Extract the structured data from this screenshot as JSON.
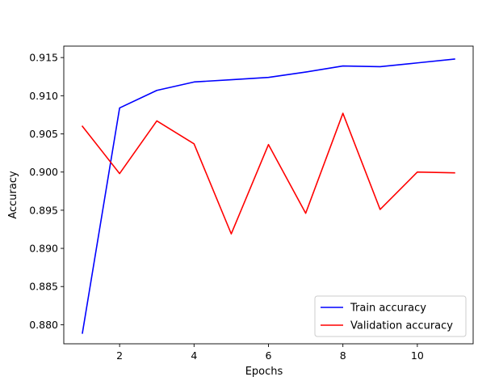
{
  "chart_data": {
    "type": "line",
    "title": "",
    "xlabel": "Epochs",
    "ylabel": "Accuracy",
    "xlim": [
      0.5,
      11.5
    ],
    "ylim": [
      0.8775,
      0.9165
    ],
    "x_ticks": [
      2,
      4,
      6,
      8,
      10
    ],
    "y_ticks": [
      0.88,
      0.885,
      0.89,
      0.895,
      0.9,
      0.905,
      0.91,
      0.915
    ],
    "y_tick_labels": [
      "0.880",
      "0.885",
      "0.890",
      "0.895",
      "0.900",
      "0.905",
      "0.910",
      "0.915"
    ],
    "grid": false,
    "legend_position": "lower-right",
    "x": [
      1,
      2,
      3,
      4,
      5,
      6,
      7,
      8,
      9,
      10,
      11
    ],
    "series": [
      {
        "name": "Train accuracy",
        "color": "#0000ff",
        "values": [
          0.8789,
          0.9084,
          0.9107,
          0.9118,
          0.9121,
          0.9124,
          0.9131,
          0.9139,
          0.9138,
          0.9143,
          0.9148
        ]
      },
      {
        "name": "Validation accuracy",
        "color": "#ff0000",
        "values": [
          0.906,
          0.8998,
          0.9067,
          0.9037,
          0.8919,
          0.9036,
          0.8946,
          0.9077,
          0.8951,
          0.9,
          0.8999
        ]
      }
    ]
  }
}
